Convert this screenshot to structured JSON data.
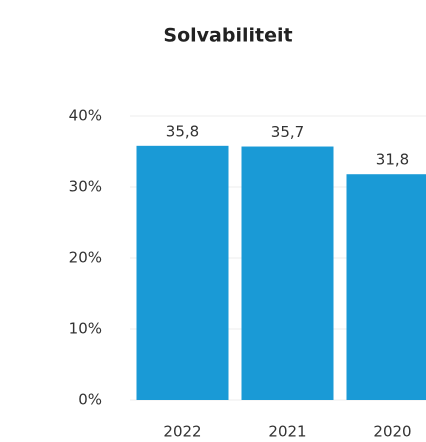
{
  "chart_data": {
    "type": "bar",
    "title": "Solvabiliteit",
    "categories": [
      "2022",
      "2021",
      "2020"
    ],
    "values": [
      35.8,
      35.7,
      31.8
    ],
    "value_labels": [
      "35,8",
      "35,7",
      "31,8"
    ],
    "color": "#1a9ad6",
    "ylim": [
      0,
      40
    ],
    "yticks": [
      {
        "value": 0,
        "label": "0%"
      },
      {
        "value": 10,
        "label": "10%"
      },
      {
        "value": 20,
        "label": "20%"
      },
      {
        "value": 30,
        "label": "30%"
      },
      {
        "value": 40,
        "label": "40%"
      }
    ],
    "grid": true
  }
}
